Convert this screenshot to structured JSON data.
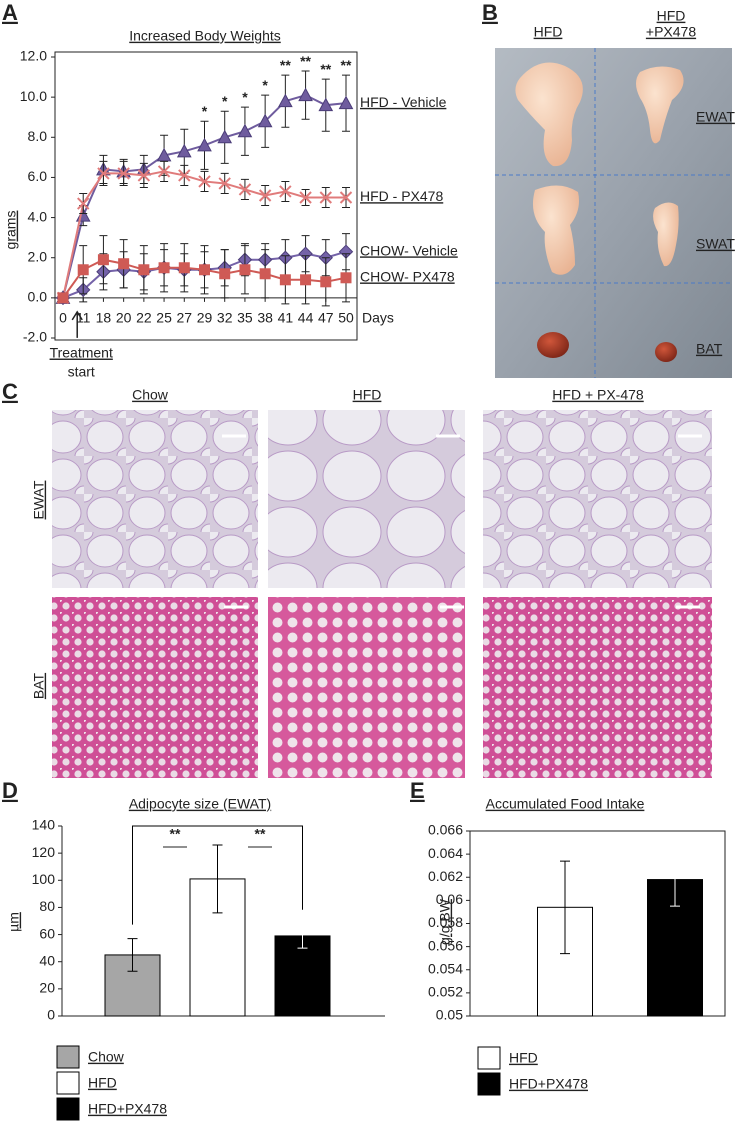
{
  "chart_data": [
    {
      "type": "line",
      "panel_label": "A",
      "title": "Increased Body Weights",
      "y_label": "grams",
      "x_label": "Days",
      "categories": [
        "0",
        "11",
        "18",
        "20",
        "22",
        "25",
        "27",
        "29",
        "32",
        "35",
        "38",
        "41",
        "44",
        "47",
        "50"
      ],
      "ylim": [
        -2,
        12
      ],
      "yticks": [
        {
          "value": -2,
          "label": "-2.0"
        },
        {
          "value": 0,
          "label": "0.0"
        },
        {
          "value": 2,
          "label": "2.0"
        },
        {
          "value": 4,
          "label": "4.0"
        },
        {
          "value": 6,
          "label": "6.0"
        },
        {
          "value": 8,
          "label": "8.0"
        },
        {
          "value": 10,
          "label": "10.0"
        },
        {
          "value": 12,
          "label": "12.0"
        }
      ],
      "series": [
        {
          "name": "HFD - Vehicle",
          "color": "#6f5c9e",
          "marker": "triangle",
          "values": [
            0,
            4.1,
            6.4,
            6.3,
            6.4,
            7.1,
            7.3,
            7.6,
            8.0,
            8.3,
            8.8,
            9.8,
            10.1,
            9.6,
            9.7
          ],
          "errors": [
            0,
            0.5,
            0.7,
            0.6,
            0.7,
            1.0,
            1.1,
            1.2,
            1.3,
            1.2,
            1.3,
            1.3,
            1.2,
            1.3,
            1.4
          ]
        },
        {
          "name": "HFD - PX478",
          "color": "#e07b7b",
          "marker": "x",
          "values": [
            0,
            4.7,
            6.2,
            6.2,
            6.1,
            6.3,
            6.1,
            5.8,
            5.7,
            5.4,
            5.1,
            5.3,
            5.0,
            5.0,
            5.0
          ],
          "errors": [
            0,
            0.5,
            0.6,
            0.6,
            0.6,
            0.5,
            0.5,
            0.5,
            0.5,
            0.5,
            0.5,
            0.5,
            0.4,
            0.5,
            0.5
          ]
        },
        {
          "name": "CHOW- Vehicle",
          "color": "#7462a8",
          "marker": "diamond",
          "values": [
            0,
            0.4,
            1.3,
            1.4,
            1.3,
            1.5,
            1.4,
            1.4,
            1.5,
            1.9,
            1.9,
            2.0,
            2.2,
            2.0,
            2.3
          ],
          "errors": [
            0,
            0.6,
            0.9,
            0.9,
            0.9,
            0.9,
            0.8,
            0.9,
            0.9,
            0.8,
            0.8,
            0.9,
            0.9,
            0.9,
            0.9
          ]
        },
        {
          "name": "CHOW- PX478",
          "color": "#cf5a55",
          "marker": "square",
          "values": [
            0,
            1.4,
            1.9,
            1.7,
            1.4,
            1.5,
            1.5,
            1.4,
            1.2,
            1.4,
            1.2,
            0.9,
            0.9,
            0.8,
            1.0
          ],
          "errors": [
            0,
            1.2,
            1.2,
            1.2,
            1.2,
            1.2,
            1.2,
            1.2,
            1.2,
            1.2,
            1.2,
            1.2,
            1.2,
            1.2,
            1.2
          ]
        }
      ],
      "significance": [
        null,
        null,
        null,
        null,
        null,
        null,
        null,
        "*",
        "*",
        "*",
        "*",
        "**",
        "**",
        "**",
        "**"
      ],
      "annotation": [
        "Treatment",
        "start"
      ],
      "annotation_at": "11"
    },
    {
      "type": "bar",
      "panel_label": "D",
      "title": "Adipocyte size (EWAT)",
      "y_label": "µm",
      "categories": [
        "Chow",
        "HFD",
        "HFD+PX478"
      ],
      "values": [
        45,
        101,
        59
      ],
      "errors": [
        12,
        25,
        9
      ],
      "colors": [
        "#a6a6a6",
        "#ffffff",
        "#000000"
      ],
      "ylim": [
        0,
        140
      ],
      "yticks": [
        0,
        20,
        40,
        60,
        80,
        100,
        120,
        140
      ],
      "significance": [
        "**",
        "**"
      ],
      "legend": "bottom"
    },
    {
      "type": "bar",
      "panel_label": "E",
      "title": "Accumulated Food Intake",
      "y_label": "g/g BW",
      "categories": [
        "HFD",
        "HFD+PX478"
      ],
      "values": [
        0.0594,
        0.0618
      ],
      "errors": [
        0.004,
        0.0023
      ],
      "colors": [
        "#ffffff",
        "#000000"
      ],
      "ylim": [
        0.05,
        0.066
      ],
      "yticks": [
        0.05,
        0.052,
        0.054,
        0.056,
        0.058,
        0.06,
        0.062,
        0.064,
        0.066
      ],
      "legend": "bottom"
    }
  ],
  "panel_b": {
    "label": "B",
    "columns": [
      [
        "HFD"
      ],
      [
        "HFD",
        "+PX478"
      ]
    ],
    "rows": [
      "EWAT",
      "SWAT",
      "BAT"
    ]
  },
  "panel_c": {
    "label": "C",
    "columns": [
      "Chow",
      "HFD",
      "HFD + PX-478"
    ],
    "rows": [
      "EWAT",
      "BAT"
    ]
  }
}
